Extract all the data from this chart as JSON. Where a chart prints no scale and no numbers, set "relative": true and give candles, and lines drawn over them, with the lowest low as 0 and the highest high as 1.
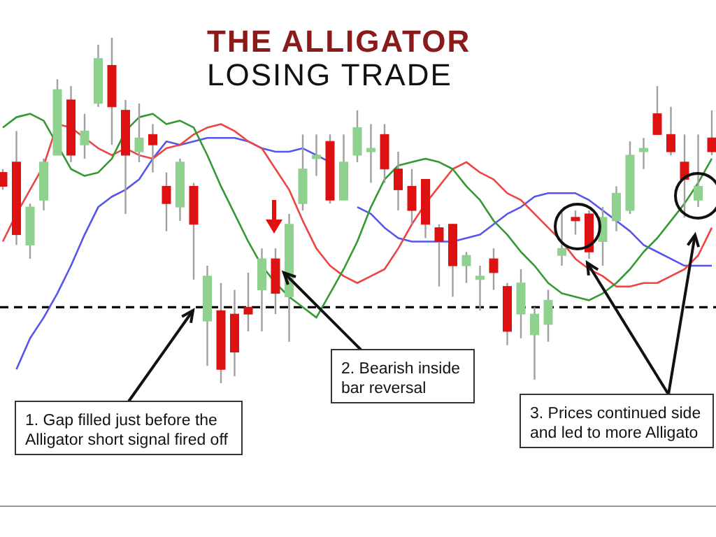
{
  "chart_data": {
    "type": "candlestick",
    "relative": true,
    "title": "THE ALLIGATOR",
    "subtitle": "LOSING TRADE",
    "categories": [
      null,
      null,
      null,
      null,
      null,
      null,
      null,
      null,
      null,
      null,
      null,
      null,
      null,
      null,
      null,
      null,
      null,
      null,
      null,
      null,
      null,
      null,
      null,
      null,
      null,
      null,
      null,
      null,
      null,
      null,
      null,
      null,
      null,
      null,
      null,
      null,
      null,
      null,
      null,
      null,
      null,
      null,
      null,
      null,
      null,
      null,
      null,
      null,
      null,
      null,
      null,
      null,
      null
    ],
    "ohlc": [
      [
        0.61,
        0.62,
        0.56,
        0.57
      ],
      [
        0.64,
        0.73,
        0.4,
        0.43
      ],
      [
        0.4,
        0.52,
        0.36,
        0.51
      ],
      [
        0.53,
        0.65,
        0.5,
        0.64
      ],
      [
        0.66,
        0.88,
        0.66,
        0.85
      ],
      [
        0.82,
        0.86,
        0.64,
        0.66
      ],
      [
        0.69,
        0.78,
        0.65,
        0.73
      ],
      [
        0.81,
        0.98,
        0.8,
        0.94
      ],
      [
        0.92,
        1.0,
        0.69,
        0.8
      ],
      [
        0.79,
        0.82,
        0.49,
        0.66
      ],
      [
        0.67,
        0.81,
        0.64,
        0.71
      ],
      [
        0.72,
        0.75,
        0.61,
        0.69
      ],
      [
        0.57,
        0.61,
        0.44,
        0.52
      ],
      [
        0.51,
        0.65,
        0.47,
        0.64
      ],
      [
        0.57,
        0.58,
        0.3,
        0.46
      ],
      [
        0.18,
        0.34,
        0.05,
        0.31
      ],
      [
        0.21,
        0.29,
        0.0,
        0.04
      ],
      [
        0.2,
        0.27,
        0.02,
        0.09
      ],
      [
        0.22,
        0.32,
        0.15,
        0.2
      ],
      [
        0.27,
        0.39,
        0.15,
        0.36
      ],
      [
        0.36,
        0.39,
        0.2,
        0.26
      ],
      [
        0.25,
        0.49,
        0.12,
        0.46
      ],
      [
        0.52,
        0.72,
        0.5,
        0.62
      ],
      [
        0.65,
        0.72,
        0.6,
        0.66
      ],
      [
        0.7,
        0.72,
        0.52,
        0.53
      ],
      [
        0.53,
        0.72,
        0.53,
        0.64
      ],
      [
        0.66,
        0.79,
        0.64,
        0.74
      ],
      [
        0.67,
        0.75,
        0.58,
        0.68
      ],
      [
        0.72,
        0.75,
        0.58,
        0.62
      ],
      [
        0.62,
        0.67,
        0.5,
        0.56
      ],
      [
        0.57,
        0.62,
        0.46,
        0.5
      ],
      [
        0.59,
        0.59,
        0.42,
        0.46
      ],
      [
        0.45,
        0.46,
        0.28,
        0.41
      ],
      [
        0.46,
        0.46,
        0.25,
        0.34
      ],
      [
        0.34,
        0.38,
        0.29,
        0.37
      ],
      [
        0.3,
        0.34,
        0.21,
        0.31
      ],
      [
        0.36,
        0.39,
        0.27,
        0.32
      ],
      [
        0.28,
        0.29,
        0.11,
        0.15
      ],
      [
        0.2,
        0.33,
        0.13,
        0.29
      ],
      [
        0.14,
        0.22,
        0.01,
        0.2
      ],
      [
        0.17,
        0.27,
        0.12,
        0.24
      ],
      [
        0.37,
        0.5,
        0.34,
        0.39
      ],
      [
        0.48,
        0.5,
        0.43,
        0.47
      ],
      [
        0.49,
        0.5,
        0.36,
        0.38
      ],
      [
        0.41,
        0.51,
        0.34,
        0.48
      ],
      [
        0.47,
        0.57,
        0.44,
        0.55
      ],
      [
        0.5,
        0.7,
        0.49,
        0.66
      ],
      [
        0.67,
        0.71,
        0.62,
        0.68
      ],
      [
        0.78,
        0.86,
        0.72,
        0.72
      ],
      [
        0.72,
        0.8,
        0.66,
        0.67
      ],
      [
        0.64,
        0.72,
        0.48,
        0.59
      ],
      [
        0.53,
        0.72,
        0.51,
        0.57
      ],
      [
        0.71,
        0.79,
        0.66,
        0.67
      ]
    ],
    "colors": [
      "#dd1111",
      "#dd1111",
      "#8fd18f",
      "#8fd18f",
      "#8fd18f",
      "#dd1111",
      "#8fd18f",
      "#8fd18f",
      "#dd1111",
      "#dd1111",
      "#8fd18f",
      "#dd1111",
      "#dd1111",
      "#8fd18f",
      "#dd1111",
      "#8fd18f",
      "#dd1111",
      "#dd1111",
      "#dd1111",
      "#8fd18f",
      "#dd1111",
      "#8fd18f",
      "#8fd18f",
      "#8fd18f",
      "#dd1111",
      "#8fd18f",
      "#8fd18f",
      "#8fd18f",
      "#dd1111",
      "#dd1111",
      "#dd1111",
      "#dd1111",
      "#dd1111",
      "#dd1111",
      "#8fd18f",
      "#8fd18f",
      "#dd1111",
      "#dd1111",
      "#8fd18f",
      "#8fd18f",
      "#8fd18f",
      "#8fd18f",
      "#dd1111",
      "#dd1111",
      "#8fd18f",
      "#8fd18f",
      "#8fd18f",
      "#8fd18f",
      "#dd1111",
      "#dd1111",
      "#dd1111",
      "#8fd18f",
      "#dd1111"
    ],
    "series": [
      {
        "type": "line",
        "color": "#5555ee",
        "values": [
          null,
          0.04,
          0.13,
          0.19,
          0.26,
          0.34,
          0.43,
          0.51,
          0.54,
          0.56,
          0.59,
          0.65,
          0.7,
          0.69,
          0.7,
          0.71,
          0.71,
          0.71,
          0.7,
          0.68,
          0.67,
          0.67,
          0.68,
          0.66,
          0.64,
          null,
          0.51,
          0.49,
          0.45,
          0.42,
          0.41,
          0.41,
          0.41,
          0.41,
          0.42,
          0.43,
          0.46,
          0.49,
          0.51,
          0.54,
          0.55,
          0.55,
          0.55,
          0.53,
          0.5,
          0.47,
          0.44,
          0.4,
          0.38,
          0.36,
          0.34,
          0.34,
          0.34
        ]
      },
      {
        "type": "line",
        "color": "#ee4444",
        "values": [
          0.41,
          0.49,
          0.56,
          0.63,
          0.75,
          0.74,
          0.71,
          0.68,
          0.66,
          0.68,
          0.66,
          0.65,
          0.68,
          0.69,
          0.72,
          0.74,
          0.75,
          0.73,
          0.7,
          0.68,
          0.62,
          0.56,
          0.47,
          0.39,
          0.34,
          0.31,
          0.29,
          0.31,
          0.33,
          0.39,
          0.46,
          0.52,
          0.57,
          0.62,
          0.64,
          0.61,
          0.59,
          0.55,
          0.53,
          0.49,
          0.45,
          0.41,
          0.36,
          0.33,
          0.31,
          0.28,
          0.28,
          0.29,
          0.29,
          0.31,
          0.33,
          0.37,
          0.45
        ]
      },
      {
        "type": "line",
        "color": "#339933",
        "values": [
          0.74,
          0.77,
          0.78,
          0.76,
          0.69,
          0.62,
          0.6,
          0.61,
          0.65,
          0.73,
          0.77,
          0.78,
          0.75,
          0.76,
          0.74,
          0.66,
          0.57,
          0.49,
          0.41,
          0.34,
          0.29,
          0.25,
          0.22,
          0.19,
          0.26,
          0.33,
          0.41,
          0.51,
          0.59,
          0.63,
          0.64,
          0.65,
          0.64,
          0.62,
          0.57,
          0.53,
          0.47,
          0.43,
          0.38,
          0.34,
          0.29,
          0.26,
          0.25,
          0.24,
          0.26,
          0.29,
          0.33,
          0.38,
          0.42,
          0.47,
          0.52,
          0.58,
          0.65
        ]
      }
    ],
    "ref_lines": [
      {
        "axis": "y",
        "value": 0.22,
        "color": "#000000",
        "line_style": "dashed"
      }
    ],
    "annotations": [
      "1. Gap filled just before the\nAlligator short signal fired off",
      "2. Bearish inside\nbar reversal",
      "3. Prices continued side\nand led to more Alligato"
    ]
  }
}
